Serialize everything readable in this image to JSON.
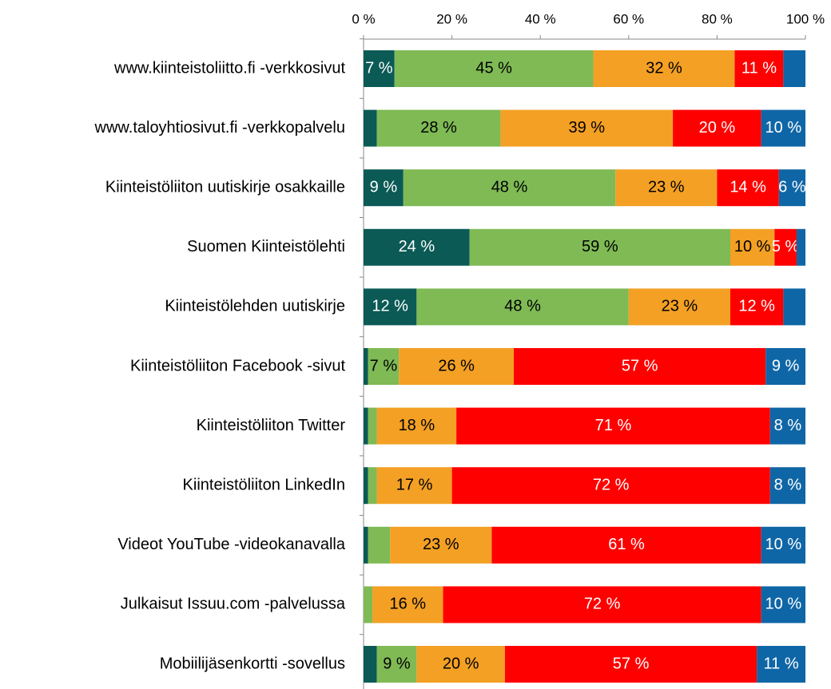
{
  "chart_data": {
    "type": "stacked_bar_horizontal",
    "categories": [
      "www.kiinteistoliitto.fi -verkkosivut",
      "www.taloyhtiosivut.fi -verkkopalvelu",
      "Kiinteistöliiton uutiskirje osakkaille",
      "Suomen Kiinteistölehti",
      "Kiinteistölehden uutiskirje",
      "Kiinteistöliiton Facebook -sivut",
      "Kiinteistöliiton Twitter",
      "Kiinteistöliiton LinkedIn",
      "Videot YouTube -videokanavalla",
      "Julkaisut Issuu.com -palvelussa",
      "Mobiilijäsenkortti -sovellus"
    ],
    "series": [
      {
        "color": "#0b5a55",
        "label_color": "#ffffff",
        "values": [
          7,
          3,
          9,
          24,
          12,
          1,
          1,
          1,
          1,
          0,
          3
        ],
        "value_labels": [
          "7 %",
          null,
          "9 %",
          "24 %",
          "12 %",
          null,
          null,
          null,
          null,
          null,
          null
        ]
      },
      {
        "color": "#7fba55",
        "label_color": "#000000",
        "values": [
          45,
          28,
          48,
          59,
          48,
          7,
          2,
          2,
          5,
          2,
          9
        ],
        "value_labels": [
          "45 %",
          "28 %",
          "48 %",
          "59 %",
          "48 %",
          "7 %",
          null,
          null,
          null,
          null,
          "9 %"
        ]
      },
      {
        "color": "#f3a024",
        "label_color": "#000000",
        "values": [
          32,
          39,
          23,
          10,
          23,
          26,
          18,
          17,
          23,
          16,
          20
        ],
        "value_labels": [
          "32 %",
          "39 %",
          "23 %",
          "10 %",
          "23 %",
          "26 %",
          "18 %",
          "17 %",
          "23 %",
          "16 %",
          "20 %"
        ]
      },
      {
        "color": "#ff0000",
        "label_color": "#ffffff",
        "values": [
          11,
          20,
          14,
          5,
          12,
          57,
          71,
          72,
          61,
          72,
          57
        ],
        "value_labels": [
          "11 %",
          "20 %",
          "14 %",
          "5 %",
          "12 %",
          "57 %",
          "71 %",
          "72 %",
          "61 %",
          "72 %",
          "57 %"
        ]
      },
      {
        "color": "#0f66a6",
        "label_color": "#ffffff",
        "values": [
          5,
          10,
          6,
          2,
          5,
          9,
          8,
          8,
          10,
          10,
          11
        ],
        "value_labels": [
          null,
          "10 %",
          "6 %",
          null,
          null,
          "9 %",
          "8 %",
          "8 %",
          "10 %",
          "10 %",
          "11 %"
        ]
      }
    ],
    "xlim": [
      0,
      100
    ],
    "xticks": [
      {
        "value": 0,
        "label": "0 %"
      },
      {
        "value": 20,
        "label": "20 %"
      },
      {
        "value": 40,
        "label": "40 %"
      },
      {
        "value": 60,
        "label": "60 %"
      },
      {
        "value": 80,
        "label": "80 %"
      },
      {
        "value": 100,
        "label": "100 %"
      }
    ]
  }
}
